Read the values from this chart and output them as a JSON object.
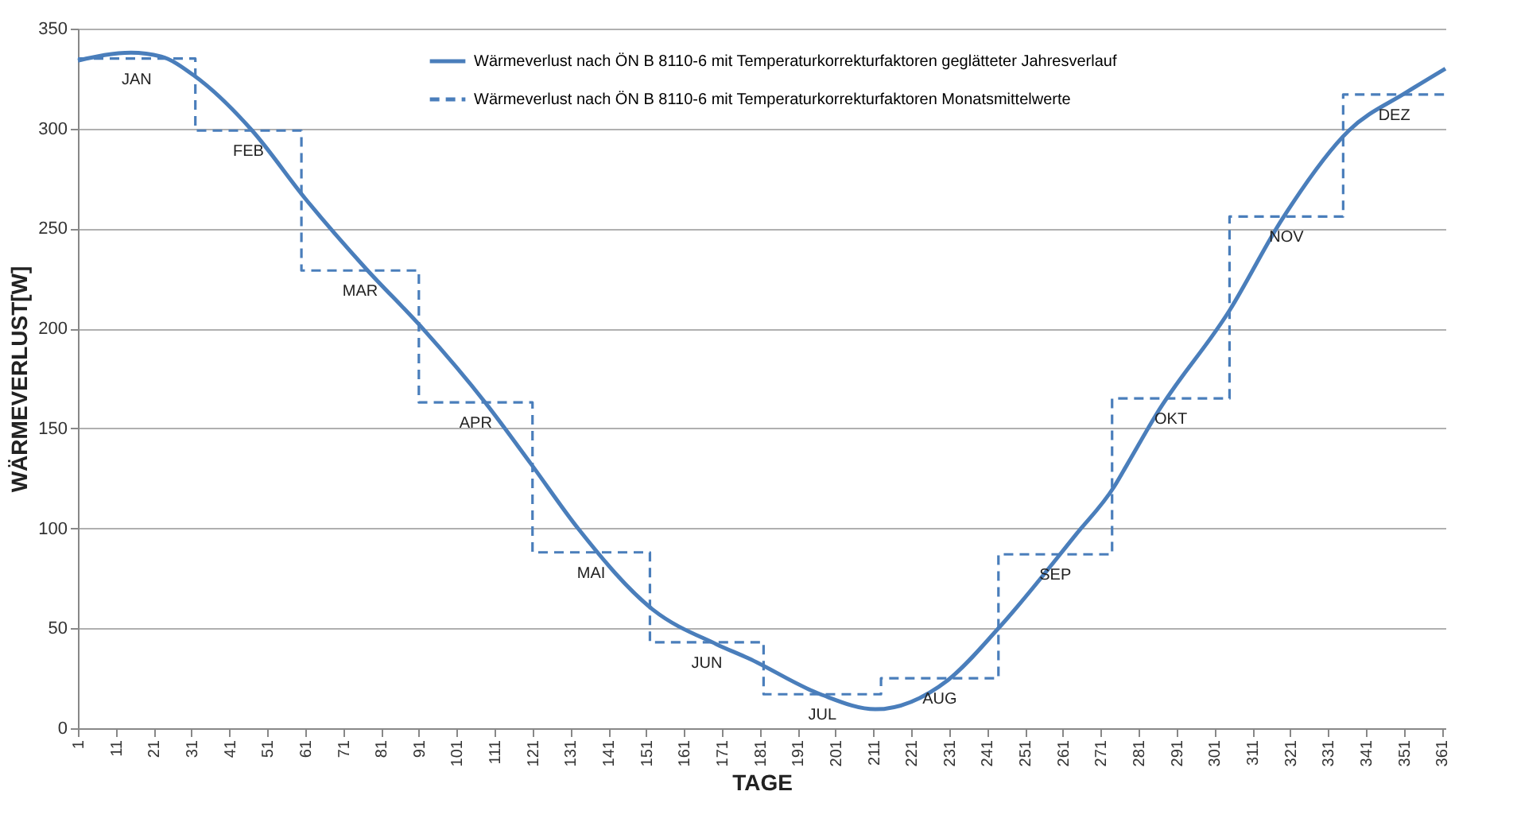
{
  "chart_data": {
    "type": "line",
    "xlabel": "TAGE",
    "ylabel": "WÄRMEVERLUST[W]",
    "xlim": [
      1,
      362
    ],
    "xticks": [
      1,
      11,
      21,
      31,
      41,
      51,
      61,
      71,
      81,
      91,
      101,
      111,
      121,
      131,
      141,
      151,
      161,
      171,
      181,
      191,
      201,
      211,
      221,
      231,
      241,
      251,
      261,
      271,
      281,
      291,
      301,
      311,
      321,
      331,
      341,
      351,
      361
    ],
    "ylim": [
      0,
      350
    ],
    "yticks": [
      0,
      50,
      100,
      150,
      200,
      250,
      300,
      350
    ],
    "grid": "y",
    "legend": "top",
    "marker": "none",
    "series": [
      {
        "name": "Wärmeverlust nach ÖN B 8110-6 mit Temperaturkorrekturfaktoren geglätteter Jahresverlauf",
        "type": "line",
        "line_style": "solid",
        "color": "#4a7ebb",
        "x": [
          1,
          15,
          23,
          32,
          47,
          61,
          77,
          92,
          108.5,
          120.7,
          133,
          153,
          169.6,
          178,
          197,
          211.5,
          230.6,
          244,
          264.5,
          274.6,
          278,
          286,
          305,
          319,
          336.5,
          351.6,
          362
        ],
        "values": [
          334,
          338,
          336,
          326,
          299,
          265,
          230,
          200,
          163,
          132,
          100,
          59,
          42,
          35,
          17,
          9.5,
          24,
          50,
          97,
          121,
          132,
          158,
          209,
          255,
          299,
          318,
          330
        ]
      },
      {
        "name": "Wärmeverlust nach ÖN B 8110-6 mit Temperaturkorrekturfaktoren Monatsmittelwerte",
        "type": "step",
        "line_style": "dashed",
        "color": "#4a7ebb",
        "x": [
          1,
          32,
          60,
          91,
          121,
          152,
          182,
          213,
          244,
          274,
          305,
          335,
          362
        ],
        "values": [
          335,
          299,
          229,
          163,
          88,
          43,
          17,
          25,
          87,
          165,
          256,
          317,
          317
        ]
      }
    ],
    "annotations": [
      "JAN",
      "FEB",
      "MAR",
      "APR",
      "MAI",
      "JUN",
      "JUL",
      "AUG",
      "SEP",
      "OKT",
      "NOV",
      "DEZ"
    ]
  }
}
